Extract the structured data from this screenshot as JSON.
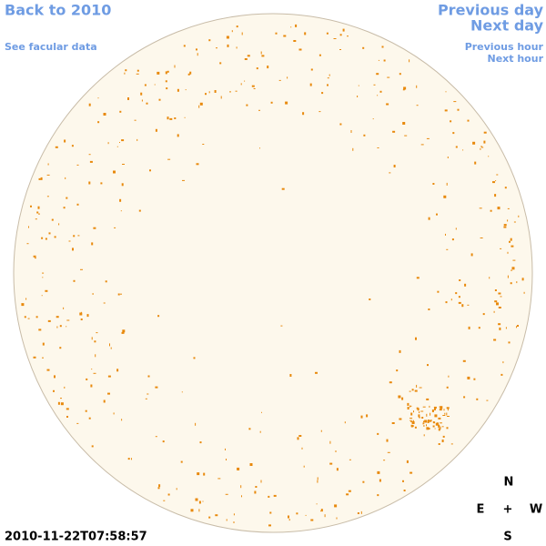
{
  "navigation": {
    "back": "Back to 2010",
    "facular_data": "See facular data",
    "previous_day": "Previous day",
    "next_day": "Next day",
    "previous_hour": "Previous hour",
    "next_hour": "Next hour"
  },
  "compass": {
    "north": "N",
    "east": "E",
    "center": "+",
    "west": "W",
    "south": "S"
  },
  "timestamp": "2010-11-22T07:58:57"
}
